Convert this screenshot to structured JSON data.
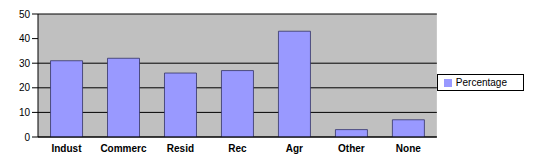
{
  "chart_data": {
    "type": "bar",
    "categories": [
      "Indust",
      "Commerc",
      "Resid",
      "Rec",
      "Agr",
      "Other",
      "None"
    ],
    "series": [
      {
        "name": "Percentage",
        "color": "#9999ff",
        "values": [
          31,
          32,
          26,
          27,
          43,
          3,
          7
        ]
      }
    ],
    "ylim": [
      0,
      50
    ],
    "yticks": [
      0,
      10,
      20,
      30,
      40,
      50
    ],
    "grid": true,
    "legend": "right"
  }
}
